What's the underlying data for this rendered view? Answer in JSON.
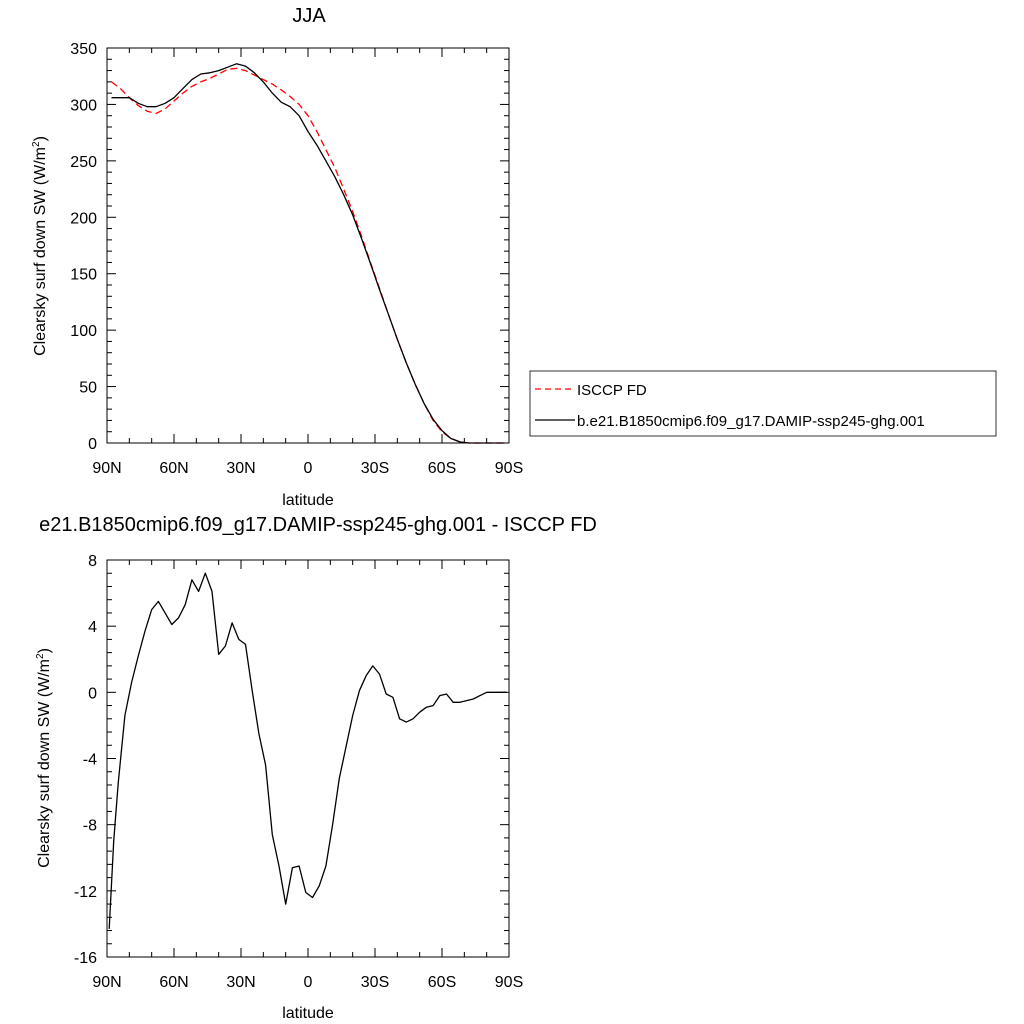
{
  "chart_data": [
    {
      "type": "line",
      "title": "JJA",
      "xlabel": "latitude",
      "ylabel": "Clearsky surf down SW (W/m²)",
      "x_tick_labels": [
        "90N",
        "60N",
        "30N",
        "0",
        "30S",
        "60S",
        "90S"
      ],
      "x_tick_values": [
        90,
        60,
        30,
        0,
        -30,
        -60,
        -90
      ],
      "xlim": [
        90,
        -90
      ],
      "ylim": [
        0,
        350
      ],
      "y_ticks": [
        0,
        50,
        100,
        150,
        200,
        250,
        300,
        350
      ],
      "grid": false,
      "legend_position": "right",
      "series": [
        {
          "name": "ISCCP FD",
          "color": "#ff0000",
          "dash": "dashed",
          "x": [
            88,
            84,
            80,
            76,
            72,
            68,
            64,
            60,
            56,
            52,
            48,
            44,
            40,
            36,
            32,
            28,
            24,
            20,
            16,
            12,
            8,
            4,
            0,
            -4,
            -8,
            -12,
            -16,
            -20,
            -24,
            -28,
            -32,
            -36,
            -40,
            -44,
            -48,
            -52,
            -56,
            -60,
            -64,
            -68,
            -72,
            -76,
            -80,
            -84,
            -88
          ],
          "values": [
            320,
            314,
            306,
            299,
            294,
            292,
            296,
            303,
            310,
            316,
            320,
            323,
            327,
            331,
            332,
            330,
            326,
            322,
            318,
            313,
            307,
            300,
            290,
            276,
            260,
            244,
            225,
            205,
            183,
            160,
            137,
            114,
            92,
            71,
            52,
            35,
            20,
            10,
            4,
            1,
            0,
            0,
            0,
            0,
            0
          ]
        },
        {
          "name": "b.e21.B1850cmip6.f09_g17.DAMIP-ssp245-ghg.001",
          "color": "#000000",
          "dash": "solid",
          "x": [
            88,
            84,
            80,
            76,
            72,
            68,
            64,
            60,
            56,
            52,
            48,
            44,
            40,
            36,
            32,
            28,
            24,
            20,
            16,
            12,
            8,
            4,
            0,
            -4,
            -8,
            -12,
            -16,
            -20,
            -24,
            -28,
            -32,
            -36,
            -40,
            -44,
            -48,
            -52,
            -56,
            -60,
            -64,
            -68,
            -72,
            -76,
            -80,
            -84,
            -88
          ],
          "values": [
            306,
            306,
            306,
            301,
            298,
            298,
            301,
            306,
            314,
            322,
            327,
            328,
            330,
            333,
            336,
            334,
            328,
            320,
            310,
            302,
            298,
            290,
            276,
            264,
            250,
            236,
            220,
            202,
            181,
            159,
            136,
            114,
            92,
            71,
            52,
            35,
            21,
            11,
            4,
            1,
            0,
            0,
            0,
            0,
            0
          ]
        }
      ]
    },
    {
      "type": "line",
      "title": "e21.B1850cmip6.f09_g17.DAMIP-ssp245-ghg.001 - ISCCP FD",
      "xlabel": "latitude",
      "ylabel": "Clearsky surf down SW (W/m²)",
      "x_tick_labels": [
        "90N",
        "60N",
        "30N",
        "0",
        "30S",
        "60S",
        "90S"
      ],
      "x_tick_values": [
        90,
        60,
        30,
        0,
        -30,
        -60,
        -90
      ],
      "xlim": [
        90,
        -90
      ],
      "ylim": [
        -16,
        8
      ],
      "y_ticks": [
        -16,
        -12,
        -8,
        -4,
        0,
        4,
        8
      ],
      "grid": false,
      "series": [
        {
          "color": "#000000",
          "dash": "solid",
          "x": [
            89,
            87,
            85,
            82,
            79,
            76,
            73,
            70,
            67,
            64,
            61,
            58,
            55,
            52,
            49,
            46,
            43,
            40,
            37,
            34,
            31,
            28,
            25,
            22,
            19,
            16,
            13,
            10,
            7,
            4,
            1,
            -2,
            -5,
            -8,
            -11,
            -14,
            -17,
            -20,
            -23,
            -26,
            -29,
            -32,
            -35,
            -38,
            -41,
            -44,
            -47,
            -50,
            -53,
            -56,
            -59,
            -62,
            -65,
            -68,
            -71,
            -74,
            -77,
            -80,
            -83,
            -86,
            -89
          ],
          "values": [
            -14.3,
            -9,
            -5.5,
            -1.4,
            0.6,
            2.2,
            3.7,
            5,
            5.5,
            4.8,
            4.1,
            4.5,
            5.3,
            6.8,
            6.1,
            7.2,
            6.1,
            2.3,
            2.8,
            4.2,
            3.2,
            2.9,
            0.1,
            -2.5,
            -4.4,
            -8.6,
            -10.5,
            -12.8,
            -10.6,
            -10.5,
            -12.1,
            -12.4,
            -11.7,
            -10.5,
            -8,
            -5.2,
            -3.3,
            -1.4,
            0.1,
            1,
            1.6,
            1.1,
            -0.1,
            -0.3,
            -1.6,
            -1.8,
            -1.6,
            -1.2,
            -0.9,
            -0.8,
            -0.2,
            -0.1,
            -0.6,
            -0.6,
            -0.5,
            -0.4,
            -0.2,
            0,
            0,
            0,
            0
          ]
        }
      ]
    }
  ]
}
